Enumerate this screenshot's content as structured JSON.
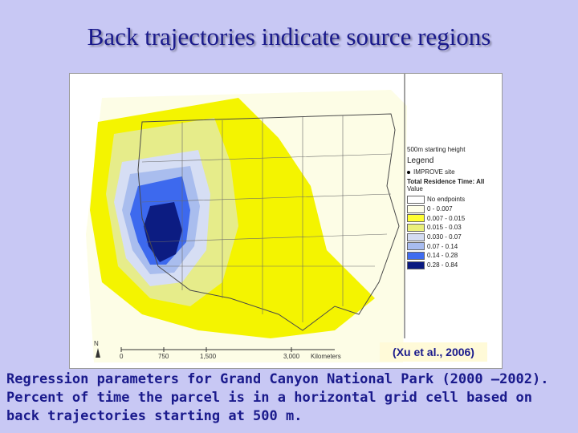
{
  "title": "Back trajectories indicate source regions",
  "figure": {
    "legend_header": "500m starting height",
    "legend_title": "Legend",
    "site_label": "IMPROVE site",
    "trt_label": "Total Residence Time: All",
    "value_label": "Value",
    "legend_items": [
      {
        "label": "No endpoints",
        "color": "#ffffff"
      },
      {
        "label": "0 - 0.007",
        "color": "#ffffe8"
      },
      {
        "label": "0.007 - 0.015",
        "color": "#ffff33"
      },
      {
        "label": "0.015 - 0.03",
        "color": "#eaf07a"
      },
      {
        "label": "0.030 - 0.07",
        "color": "#d4dcf2"
      },
      {
        "label": "0.07 - 0.14",
        "color": "#a8bcf0"
      },
      {
        "label": "0.14 - 0.28",
        "color": "#3f6cf0"
      },
      {
        "label": "0.28 - 0.84",
        "color": "#0a1a80"
      }
    ],
    "scale_labels": [
      "0",
      "750",
      "1,500",
      "3,000"
    ],
    "scale_unit": "Kilometers",
    "north_label": "N",
    "citation": "(Xu et al., 2006)"
  },
  "caption": "Regression parameters for Grand Canyon National Park (2000 –2002). Percent of time the parcel is in a horizontal grid cell based on back trajectories starting at 500 m."
}
